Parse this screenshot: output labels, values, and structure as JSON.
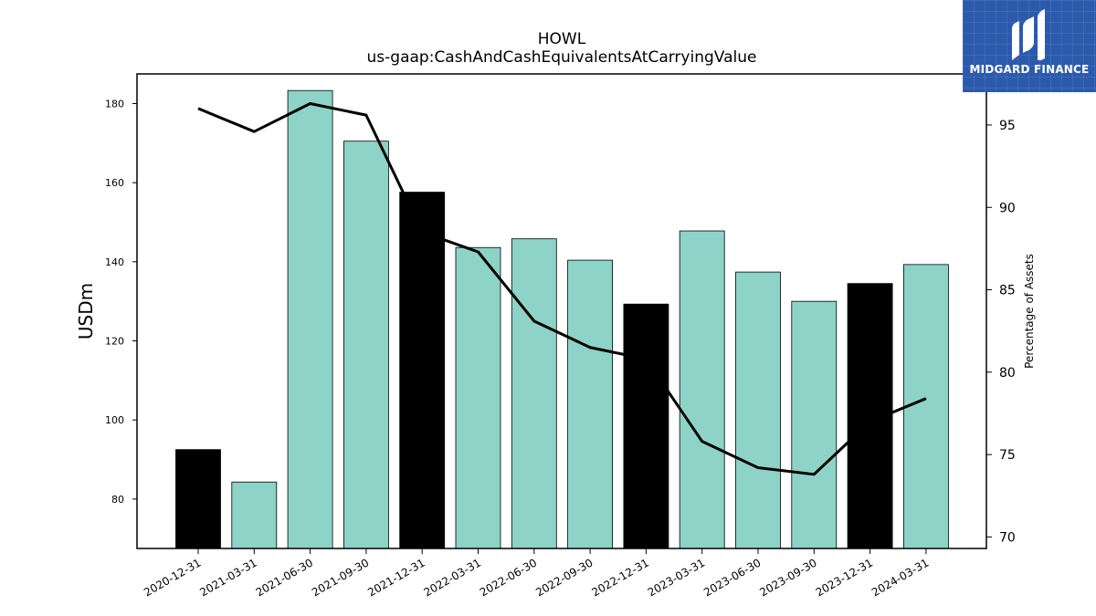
{
  "chart_data": {
    "type": "bar",
    "title": "HOWL",
    "subtitle": "us-gaap:CashAndCashEquivalentsAtCarryingValue",
    "ylabel": "USDm",
    "y2label": "Percentage of Assets",
    "categories": [
      "2020-12-31",
      "2021-03-31",
      "2021-06-30",
      "2021-09-30",
      "2021-12-31",
      "2022-03-31",
      "2022-06-30",
      "2022-09-30",
      "2022-12-31",
      "2023-03-31",
      "2023-06-30",
      "2023-09-30",
      "2023-12-31",
      "2024-03-31"
    ],
    "series": [
      {
        "type": "bar",
        "values": [
          92.5,
          84.3,
          183.3,
          170.5,
          157.6,
          143.6,
          145.8,
          140.4,
          129.3,
          147.8,
          137.4,
          130.0,
          134.5,
          139.3
        ],
        "colors": [
          "#000000",
          "#8dd3c7",
          "#8dd3c7",
          "#8dd3c7",
          "#000000",
          "#8dd3c7",
          "#8dd3c7",
          "#8dd3c7",
          "#000000",
          "#8dd3c7",
          "#8dd3c7",
          "#8dd3c7",
          "#000000",
          "#8dd3c7"
        ]
      },
      {
        "type": "line",
        "axis": "right",
        "values": [
          96.0,
          94.6,
          96.3,
          95.6,
          88.5,
          87.3,
          83.1,
          81.5,
          80.8,
          75.8,
          74.2,
          73.8,
          77.0,
          78.4
        ]
      }
    ],
    "ylim": [
      67.5,
      187.5
    ],
    "y2lim": [
      69.3,
      98.1
    ],
    "yticks": [
      80,
      100,
      120,
      140,
      160,
      180
    ],
    "y2ticks": [
      70,
      75,
      80,
      85,
      90,
      95
    ],
    "grid": false,
    "legend": "none"
  },
  "logo": {
    "text": "MIDGARD FINANCE"
  },
  "colors": {
    "bar_default": "#8dd3c7",
    "bar_highlight": "#000000",
    "line": "#000000",
    "logo_bg": "#2b5aad"
  }
}
